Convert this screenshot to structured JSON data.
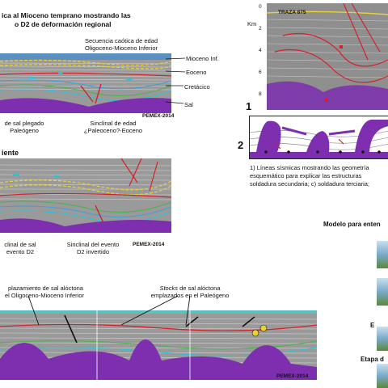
{
  "panel_a": {
    "title_line1": "ica al Mioceno temprano mostrando las",
    "title_line2": "o D2 de deformación regional",
    "label_chaotic_1": "Secuencia caótica de edad",
    "label_chaotic_2": "Oligoceno-Mioceno Inferior",
    "label_mioceno": "Mioceno Inf.",
    "label_eoceno": "Eoceno",
    "label_cretacico": "Cretácico",
    "label_sal": "Sal",
    "label_salt_fold_1": "de sal plegado",
    "label_salt_fold_2": "Paleógeno",
    "label_syncline_1": "Sinclinal de edad",
    "label_syncline_2": "¿Paleoceno?-Eoceno",
    "credit": "PEMEX-2014"
  },
  "panel_b": {
    "title": "iente",
    "label_syncline_salt_1": "clinal de sal",
    "label_syncline_salt_2": "evento D2",
    "label_inverted_1": "Sinclinal del evento",
    "label_inverted_2": "D2 invertido",
    "credit": "PEMEX-2014"
  },
  "panel_c": {
    "label_left_1": "plazamiento de sal alóctona",
    "label_left_2": "el Oligoceno-Mioceno Inferior",
    "label_right_stocks": "Stocks",
    "label_right_1": " de sal alóctona",
    "label_right_2": "emplazados en el Paleógeno",
    "credit": "PEMEX-2014"
  },
  "seismic_right": {
    "traza": "TRAZA 875",
    "axis_label": "Km",
    "ticks": [
      "0",
      "2",
      "4",
      "6",
      "8"
    ],
    "fig_number_1": "1",
    "fig_number_2": "2"
  },
  "caption": {
    "line1": "1) Líneas sísmicas mostrando las geometría",
    "line2": "esquemático para explicar las estructuras",
    "line3": "soldadura secundaria; c) soldadura terciaria;"
  },
  "model": {
    "title": "Modelo para enten",
    "label_e": "E",
    "label_stage": "Etapa d"
  },
  "colors": {
    "salt": "#7d2fb0",
    "fault": "#d4202a",
    "horizon_yellow": "#e8d23a",
    "cyan": "#29c3d8"
  }
}
